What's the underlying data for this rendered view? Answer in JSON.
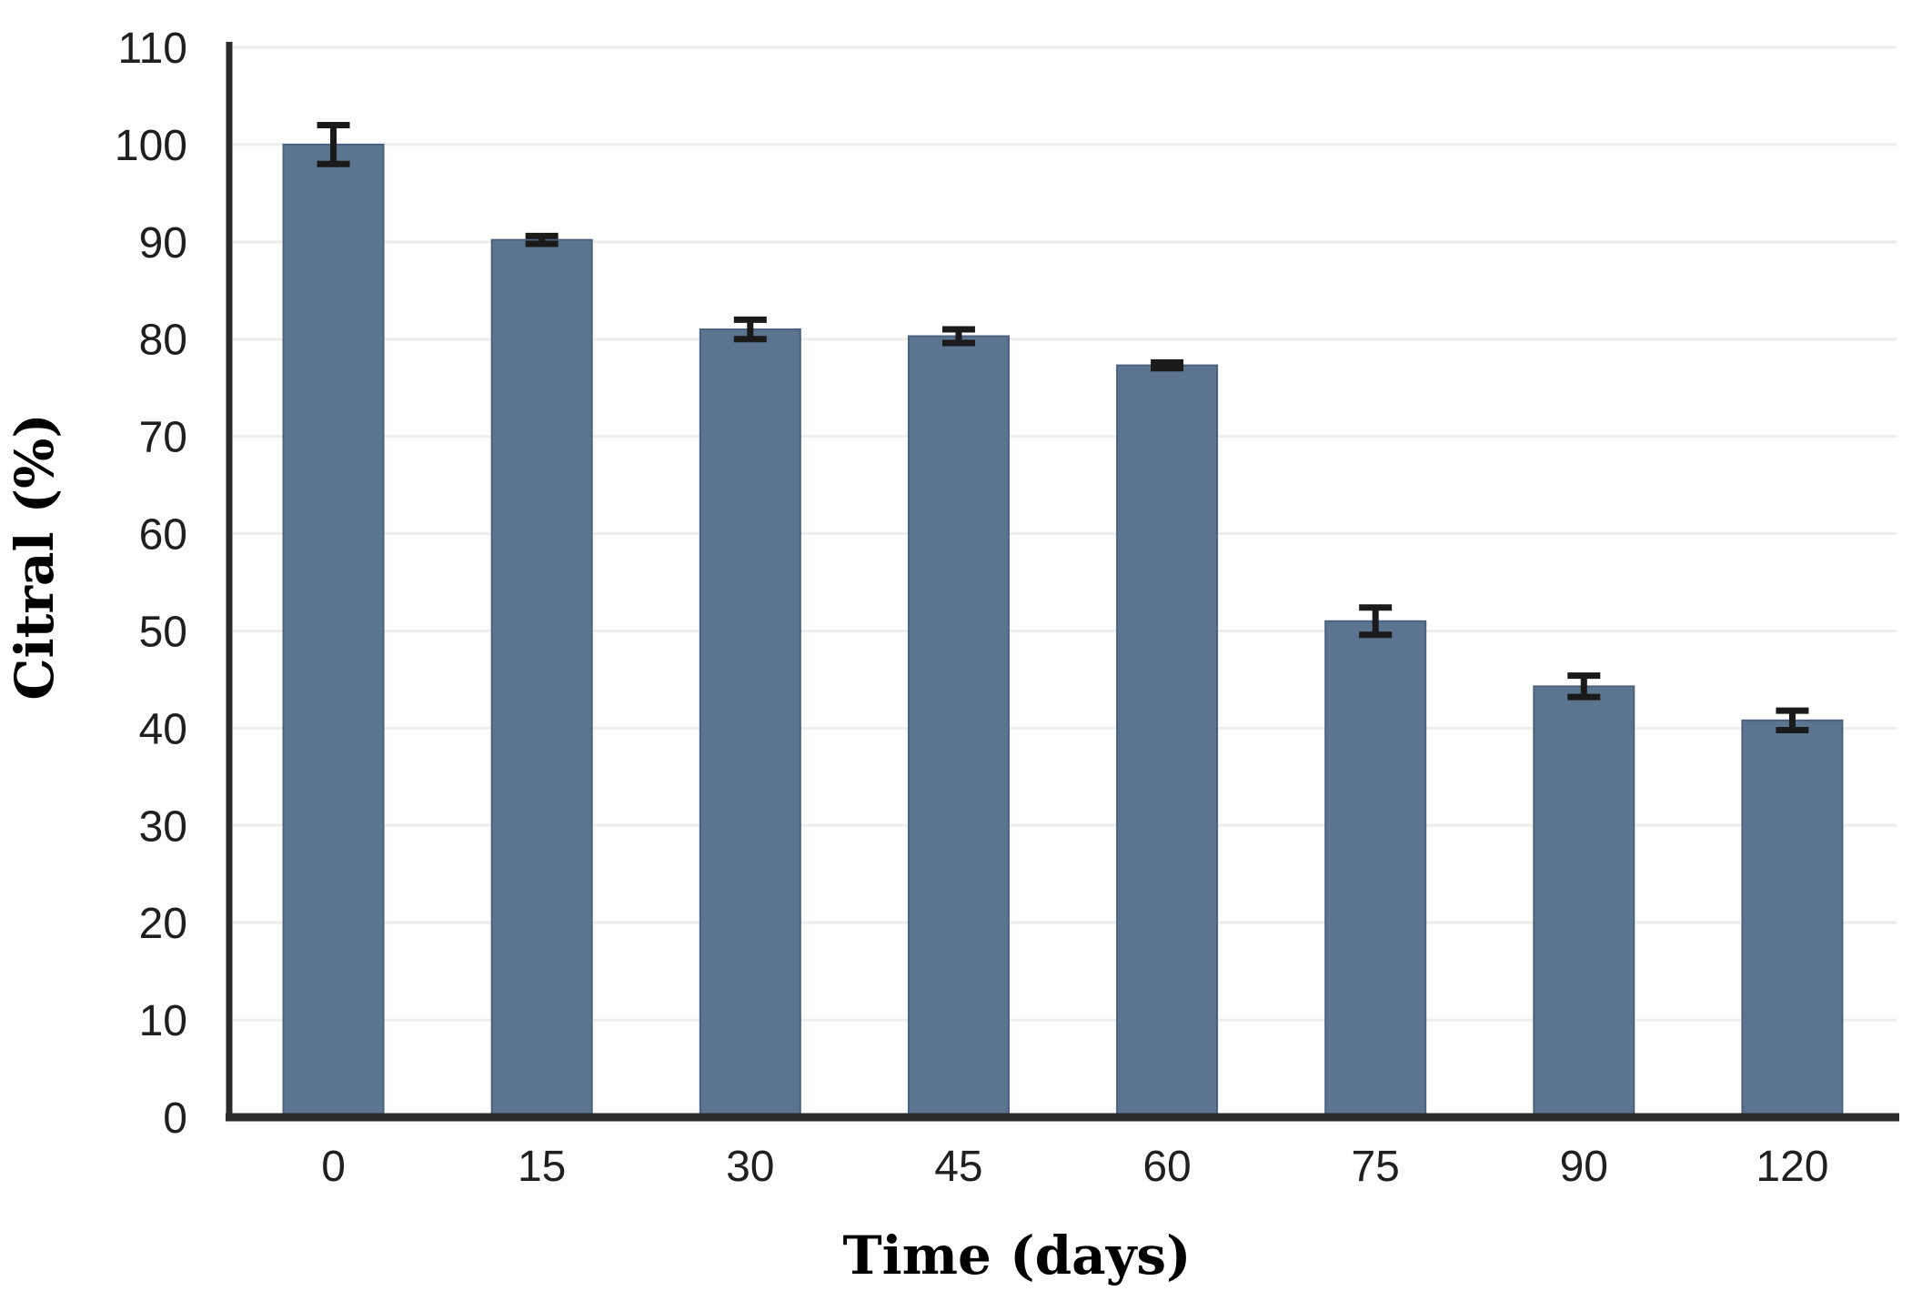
{
  "chart_data": {
    "type": "bar",
    "title": "",
    "xlabel": "Time (days)",
    "ylabel": "Citral (%)",
    "categories": [
      "0",
      "15",
      "30",
      "45",
      "60",
      "75",
      "90",
      "120"
    ],
    "values": [
      100,
      90.2,
      81,
      80.3,
      77.3,
      51,
      44.3,
      40.8
    ],
    "error_bars": [
      2,
      0.4,
      1,
      0.7,
      0.3,
      1.4,
      1.1,
      1
    ],
    "ylim": [
      0,
      110
    ],
    "yticks": [
      0,
      10,
      20,
      30,
      40,
      50,
      60,
      70,
      80,
      90,
      100,
      110
    ],
    "grid": "horizontal-only",
    "legend": "none",
    "colors": {
      "background": "#FFFFFF",
      "bar_fill": "#5B7490",
      "bar_border": "#4A627F",
      "gridline": "#EDEDED",
      "axis_line": "#2B2B2B",
      "error_bar": "#1A1A1A",
      "tick_label": "#1F1F1F",
      "axis_title": "#000000"
    }
  }
}
